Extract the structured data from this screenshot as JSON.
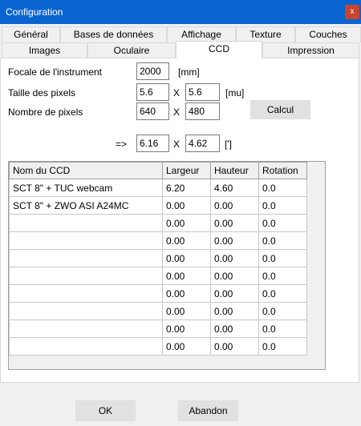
{
  "window": {
    "title": "Configuration",
    "close_label": "x"
  },
  "tabs_row1": [
    "Général",
    "Bases de données",
    "Affichage",
    "Texture",
    "Couches"
  ],
  "tabs_row2": [
    "Images",
    "Oculaire",
    "CCD",
    "Impression"
  ],
  "active_tab": "CCD",
  "form": {
    "focal_label": "Focale de l'instrument",
    "focal_value": "2000",
    "focal_unit": "[mm]",
    "pixel_size_label": "Taille des pixels",
    "pixel_size_x": "5.6",
    "pixel_size_y": "5.6",
    "pixel_size_unit": "[mu]",
    "pixel_count_label": "Nombre de pixels",
    "pixel_count_x": "640",
    "pixel_count_y": "480",
    "times": "X",
    "calc_button": "Calcul",
    "result_prefix": "=>",
    "result_x": "6.16",
    "result_y": "4.62",
    "result_unit": "[']"
  },
  "grid": {
    "headers": [
      "Nom du CCD",
      "Largeur",
      "Hauteur",
      "Rotation"
    ],
    "rows": [
      [
        "SCT 8\" + TUC webcam",
        "6.20",
        "4.60",
        "0.0"
      ],
      [
        "SCT 8\" + ZWO ASI A24MC",
        "0.00",
        "0.00",
        "0.0"
      ],
      [
        "",
        "0.00",
        "0.00",
        "0.0"
      ],
      [
        "",
        "0.00",
        "0.00",
        "0.0"
      ],
      [
        "",
        "0.00",
        "0.00",
        "0.0"
      ],
      [
        "",
        "0.00",
        "0.00",
        "0.0"
      ],
      [
        "",
        "0.00",
        "0.00",
        "0.0"
      ],
      [
        "",
        "0.00",
        "0.00",
        "0.0"
      ],
      [
        "",
        "0.00",
        "0.00",
        "0.0"
      ],
      [
        "",
        "0.00",
        "0.00",
        "0.0"
      ]
    ]
  },
  "footer": {
    "ok": "OK",
    "cancel": "Abandon"
  }
}
